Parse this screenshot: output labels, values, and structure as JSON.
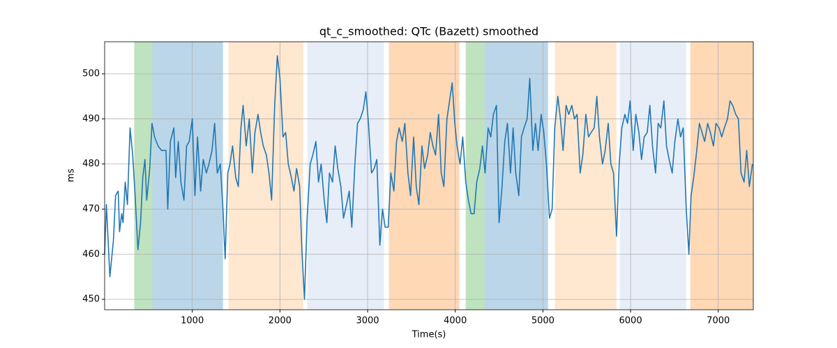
{
  "chart_data": {
    "type": "line",
    "title": "qt_c_smoothed: QTc (Bazett) smoothed",
    "xlabel": "Time(s)",
    "ylabel": "ms",
    "color": "#1f77b4",
    "grid": true,
    "xlim": [
      0,
      7400
    ],
    "ylim": [
      447.7,
      507.1
    ],
    "xticks": [
      1000,
      2000,
      3000,
      4000,
      5000,
      6000,
      7000
    ],
    "yticks": [
      450,
      460,
      470,
      480,
      490,
      500
    ],
    "spans": [
      {
        "start": 338,
        "end": 545,
        "color": "#2ca02c",
        "alpha": 0.3
      },
      {
        "start": 545,
        "end": 1350,
        "color": "#1f77b4",
        "alpha": 0.3
      },
      {
        "start": 1413,
        "end": 2265,
        "color": "#ffbb78",
        "alpha": 0.35
      },
      {
        "start": 2312,
        "end": 3187,
        "color": "#aec7e8",
        "alpha": 0.3
      },
      {
        "start": 3243,
        "end": 4047,
        "color": "#ff7f0e",
        "alpha": 0.3
      },
      {
        "start": 4119,
        "end": 4334,
        "color": "#2ca02c",
        "alpha": 0.3
      },
      {
        "start": 4334,
        "end": 5058,
        "color": "#1f77b4",
        "alpha": 0.3
      },
      {
        "start": 5137,
        "end": 5838,
        "color": "#ffbb78",
        "alpha": 0.35
      },
      {
        "start": 5878,
        "end": 6634,
        "color": "#aec7e8",
        "alpha": 0.3
      },
      {
        "start": 6682,
        "end": 7400,
        "color": "#ff7f0e",
        "alpha": 0.3
      }
    ],
    "x": [
      0,
      20,
      60,
      100,
      125,
      155,
      170,
      195,
      210,
      235,
      260,
      290,
      320,
      345,
      380,
      410,
      435,
      460,
      480,
      515,
      540,
      570,
      610,
      650,
      700,
      720,
      750,
      790,
      810,
      840,
      870,
      905,
      935,
      965,
      1000,
      1030,
      1060,
      1095,
      1125,
      1160,
      1190,
      1225,
      1255,
      1285,
      1320,
      1350,
      1375,
      1405,
      1430,
      1460,
      1495,
      1525,
      1555,
      1580,
      1615,
      1650,
      1685,
      1715,
      1750,
      1780,
      1810,
      1845,
      1875,
      1905,
      1940,
      1970,
      2000,
      2035,
      2065,
      2095,
      2130,
      2160,
      2190,
      2225,
      2250,
      2280,
      2310,
      2345,
      2375,
      2410,
      2440,
      2470,
      2505,
      2535,
      2565,
      2600,
      2630,
      2660,
      2695,
      2725,
      2760,
      2790,
      2820,
      2855,
      2885,
      2915,
      2950,
      2980,
      3010,
      3045,
      3075,
      3105,
      3140,
      3170,
      3200,
      3235,
      3265,
      3300,
      3330,
      3360,
      3395,
      3425,
      3460,
      3490,
      3525,
      3555,
      3585,
      3620,
      3650,
      3685,
      3715,
      3745,
      3775,
      3810,
      3840,
      3870,
      3905,
      3935,
      3965,
      3995,
      4020,
      4055,
      4085,
      4120,
      4150,
      4180,
      4215,
      4245,
      4280,
      4310,
      4340,
      4375,
      4405,
      4435,
      4470,
      4500,
      4530,
      4565,
      4595,
      4630,
      4660,
      4690,
      4725,
      4755,
      4785,
      4820,
      4850,
      4885,
      4915,
      4945,
      4980,
      5010,
      5040,
      5075,
      5105,
      5135,
      5170,
      5200,
      5230,
      5265,
      5295,
      5330,
      5360,
      5390,
      5425,
      5455,
      5490,
      5520,
      5550,
      5585,
      5615,
      5645,
      5680,
      5710,
      5745,
      5775,
      5805,
      5840,
      5870,
      5900,
      5935,
      5965,
      5995,
      6030,
      6060,
      6095,
      6125,
      6155,
      6190,
      6220,
      6250,
      6285,
      6315,
      6345,
      6380,
      6410,
      6440,
      6475,
      6505,
      6540,
      6570,
      6600,
      6635,
      6665,
      6690,
      6720,
      6755,
      6785,
      6815,
      6845,
      6880,
      6910,
      6945,
      6975,
      7010,
      7040,
      7070,
      7105,
      7135,
      7165,
      7200,
      7230,
      7260,
      7295,
      7325,
      7355,
      7390
    ],
    "values": [
      460,
      471,
      455,
      463,
      473,
      474,
      465,
      469,
      467,
      476,
      471,
      488,
      482,
      474,
      461,
      467,
      477,
      481,
      472,
      479,
      489,
      486,
      484,
      483,
      483,
      470,
      485,
      488,
      477,
      485,
      476,
      472,
      484,
      485,
      490,
      473,
      486,
      474,
      481,
      478,
      480,
      483,
      489,
      478,
      480,
      470,
      459,
      478,
      480,
      484,
      477,
      475,
      488,
      493,
      484,
      490,
      478,
      487,
      491,
      487,
      484,
      482,
      478,
      472,
      493,
      504,
      499,
      486,
      487,
      480,
      477,
      474,
      479,
      475,
      461,
      450,
      468,
      480,
      482,
      485,
      476,
      480,
      472,
      467,
      478,
      476,
      484,
      479,
      475,
      468,
      471,
      474,
      466,
      480,
      489,
      490,
      492,
      496,
      489,
      478,
      479,
      481,
      462,
      470,
      466,
      466,
      478,
      474,
      485,
      488,
      485,
      489,
      478,
      473,
      486,
      475,
      471,
      484,
      479,
      482,
      487,
      484,
      482,
      491,
      478,
      475,
      490,
      494,
      498,
      489,
      484,
      480,
      486,
      476,
      472,
      469,
      469,
      476,
      479,
      484,
      478,
      488,
      486,
      491,
      493,
      467,
      474,
      485,
      489,
      478,
      488,
      478,
      473,
      486,
      488,
      490,
      499,
      483,
      489,
      483,
      491,
      487,
      480,
      468,
      470,
      488,
      495,
      490,
      483,
      493,
      491,
      493,
      490,
      491,
      478,
      482,
      491,
      486,
      487,
      488,
      495,
      486,
      480,
      483,
      489,
      480,
      478,
      464,
      480,
      488,
      491,
      489,
      494,
      483,
      491,
      487,
      481,
      486,
      487,
      493,
      484,
      478,
      489,
      488,
      494,
      484,
      481,
      478,
      485,
      490,
      486,
      488,
      470,
      460,
      473,
      477,
      483,
      489,
      487,
      485,
      489,
      487,
      484,
      489,
      488,
      486,
      488,
      490,
      494,
      493,
      491,
      490,
      478,
      476,
      483,
      475,
      480
    ]
  }
}
